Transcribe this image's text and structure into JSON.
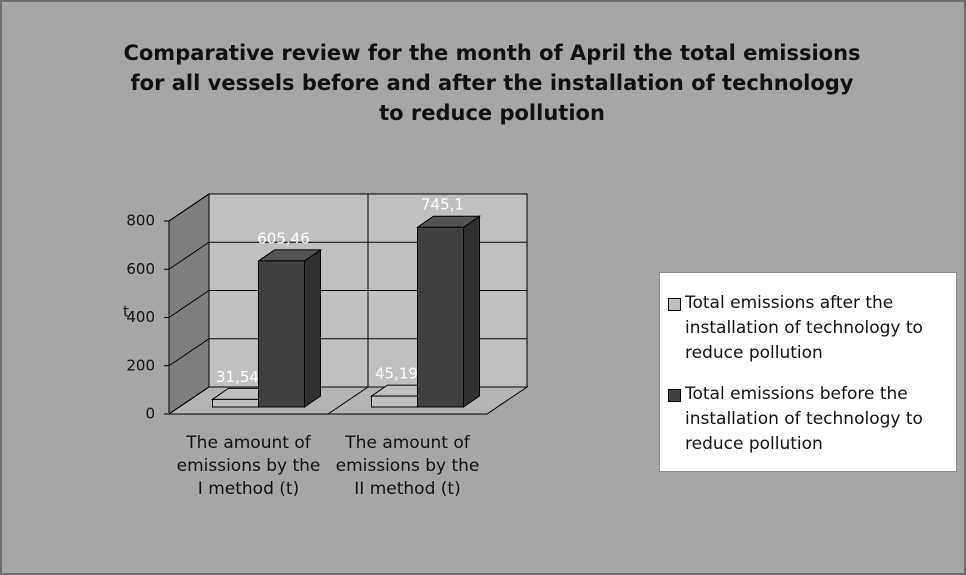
{
  "chart_data": {
    "type": "bar3d",
    "title": "Comparative review for the month of April the total emissions for all vessels before and after the installation of technology to reduce pollution",
    "y_label": "t",
    "categories": [
      "The amount of emissions by the I method (t)",
      "The amount of emissions by the II method (t)"
    ],
    "series": [
      {
        "name": "Total emissions after the installation of technology to reduce pollution",
        "color": "#bfbfbf",
        "values": [
          31.54,
          45.19
        ],
        "value_labels": [
          "31,54",
          "45,19"
        ]
      },
      {
        "name": "Total emissions before the installation of technology to reduce pollution",
        "color": "#404040",
        "values": [
          605.46,
          745.1
        ],
        "value_labels": [
          "605,46",
          "745,1"
        ]
      }
    ],
    "ylim": [
      0,
      800
    ],
    "yticks": [
      0,
      200,
      400,
      600,
      800
    ],
    "grid": true,
    "legend": "right"
  }
}
